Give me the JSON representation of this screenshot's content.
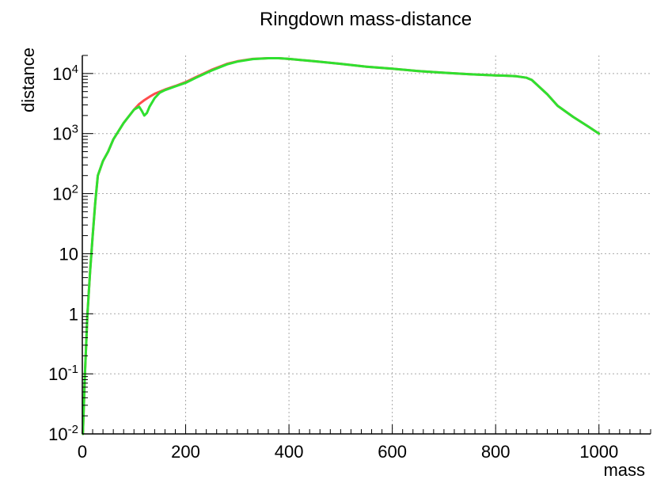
{
  "chart_data": {
    "type": "line",
    "title": "Ringdown mass-distance",
    "xlabel": "mass",
    "ylabel": "distance",
    "xlim": [
      0,
      1100
    ],
    "ylim": [
      0.01,
      20000
    ],
    "y_scale": "log",
    "grid": true,
    "x_ticks": [
      0,
      200,
      400,
      600,
      800,
      1000
    ],
    "x_tick_labels": [
      "0",
      "200",
      "400",
      "600",
      "800",
      "1000"
    ],
    "y_ticks": [
      0.01,
      0.1,
      1,
      10,
      100,
      1000,
      10000
    ],
    "y_tick_labels": [
      {
        "base": "10",
        "exp": "-2"
      },
      {
        "base": "10",
        "exp": "-1"
      },
      {
        "base": "1",
        "exp": ""
      },
      {
        "base": "10",
        "exp": ""
      },
      {
        "base": "10",
        "exp": "2"
      },
      {
        "base": "10",
        "exp": "3"
      },
      {
        "base": "10",
        "exp": "4"
      }
    ],
    "colors": {
      "red": "#ff4d4d",
      "green": "#2fe02f",
      "grid": "#a9a9a9",
      "axis": "#000000"
    },
    "series": [
      {
        "color": "red",
        "x": [
          1,
          5,
          10,
          15,
          20,
          25,
          30,
          40,
          50,
          60,
          80,
          100,
          110,
          120,
          130,
          140,
          150,
          160,
          180,
          200,
          220,
          250,
          280,
          300,
          330,
          360,
          380,
          400,
          450,
          500,
          550,
          600,
          650,
          700,
          750,
          800,
          820,
          840,
          860,
          870,
          880,
          900,
          920,
          950,
          980,
          1000
        ],
        "y": [
          0.01,
          0.1,
          1,
          5,
          20,
          70,
          200,
          350,
          500,
          800,
          1500,
          2500,
          3100,
          3600,
          4100,
          4600,
          5000,
          5400,
          6200,
          7200,
          8700,
          11500,
          14500,
          16000,
          17500,
          18000,
          18000,
          17500,
          16000,
          14500,
          13000,
          12000,
          11000,
          10300,
          9700,
          9300,
          9200,
          9000,
          8500,
          7800,
          6500,
          4500,
          2900,
          1900,
          1300,
          1000
        ]
      },
      {
        "color": "green",
        "x": [
          1,
          5,
          10,
          15,
          20,
          25,
          30,
          40,
          50,
          60,
          80,
          100,
          110,
          115,
          120,
          125,
          130,
          140,
          150,
          160,
          180,
          200,
          220,
          250,
          280,
          300,
          330,
          360,
          380,
          400,
          450,
          500,
          550,
          600,
          650,
          700,
          750,
          800,
          820,
          840,
          860,
          870,
          880,
          900,
          920,
          950,
          980,
          1000
        ],
        "y": [
          0.01,
          0.1,
          1,
          5,
          20,
          70,
          200,
          350,
          500,
          800,
          1500,
          2500,
          2800,
          2400,
          2000,
          2200,
          2800,
          3900,
          4800,
          5300,
          6100,
          7000,
          8500,
          11200,
          14200,
          15800,
          17400,
          18000,
          18000,
          17500,
          16000,
          14500,
          13000,
          12000,
          11000,
          10300,
          9700,
          9300,
          9200,
          9000,
          8500,
          7800,
          6500,
          4500,
          2900,
          1900,
          1300,
          1000
        ]
      }
    ]
  }
}
